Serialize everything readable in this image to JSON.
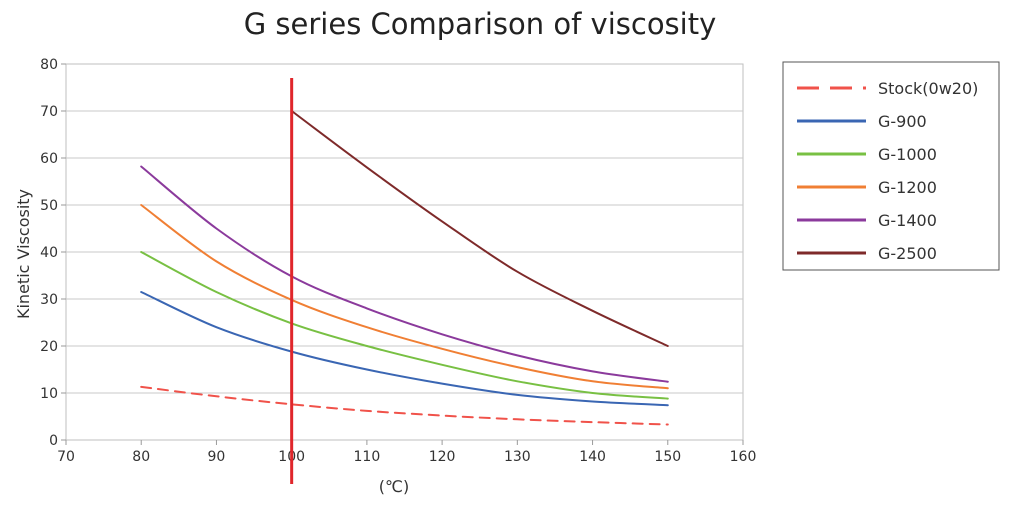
{
  "chart_data": {
    "type": "line",
    "title": "G series Comparison of viscosity",
    "xlabel": "(℃)",
    "ylabel": "Kinetic Viscosity",
    "xlim": [
      70,
      160
    ],
    "ylim": [
      0,
      80
    ],
    "xticks": [
      70,
      80,
      90,
      100,
      110,
      120,
      130,
      140,
      150,
      160
    ],
    "yticks": [
      0,
      10,
      20,
      30,
      40,
      50,
      60,
      70,
      80
    ],
    "grid": "horizontal",
    "legend": "right",
    "reference_line": {
      "x": 100,
      "color": "#e0262b"
    },
    "series": [
      {
        "name": "Stock(0w20)",
        "color": "#f0524a",
        "dashed": true,
        "x": [
          80,
          90,
          100,
          110,
          120,
          130,
          140,
          150
        ],
        "y": [
          11.3,
          9.3,
          7.6,
          6.2,
          5.2,
          4.4,
          3.8,
          3.3
        ]
      },
      {
        "name": "G-900",
        "color": "#3a66b3",
        "dashed": false,
        "x": [
          80,
          90,
          100,
          110,
          120,
          130,
          140,
          150
        ],
        "y": [
          31.5,
          24,
          18.8,
          15,
          12,
          9.6,
          8.2,
          7.4
        ]
      },
      {
        "name": "G-1000",
        "color": "#78c043",
        "dashed": false,
        "x": [
          80,
          90,
          100,
          110,
          120,
          130,
          140,
          150
        ],
        "y": [
          40,
          31.5,
          24.8,
          20,
          16,
          12.5,
          10,
          8.8
        ]
      },
      {
        "name": "G-1200",
        "color": "#f07f34",
        "dashed": false,
        "x": [
          80,
          90,
          100,
          110,
          120,
          130,
          140,
          150
        ],
        "y": [
          50,
          38,
          29.8,
          24,
          19.4,
          15.5,
          12.5,
          11
        ]
      },
      {
        "name": "G-1400",
        "color": "#8b3a9c",
        "dashed": false,
        "x": [
          80,
          90,
          100,
          110,
          120,
          130,
          140,
          150
        ],
        "y": [
          58.2,
          45,
          34.8,
          28,
          22.5,
          18,
          14.6,
          12.4
        ]
      },
      {
        "name": "G-2500",
        "color": "#7e2a2a",
        "dashed": false,
        "x": [
          100,
          110,
          120,
          130,
          140,
          150
        ],
        "y": [
          70,
          58,
          46.5,
          35.8,
          27.5,
          20
        ]
      }
    ]
  }
}
